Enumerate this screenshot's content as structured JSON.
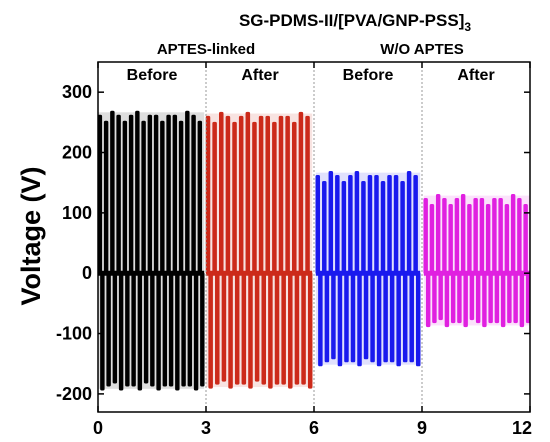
{
  "chart_data": {
    "type": "line",
    "title": "SG-PDMS-II/[PVA/GNP-PSS]",
    "title_subscript": "3",
    "xlabel": "",
    "ylabel": "Voltage (V)",
    "xlim": [
      0,
      12
    ],
    "ylim": [
      -230,
      350
    ],
    "xticks": [
      0,
      3,
      6,
      9,
      12
    ],
    "yticks": [
      -200,
      -100,
      0,
      100,
      200,
      300
    ],
    "grid": false,
    "legend": "none",
    "separators_x": [
      3,
      6,
      9
    ],
    "groups": [
      {
        "label": "APTES-linked",
        "x_range": [
          0,
          6
        ]
      },
      {
        "label": "W/O APTES",
        "x_range": [
          6,
          12
        ]
      }
    ],
    "sections": [
      {
        "label": "Before",
        "x_range": [
          0,
          3
        ]
      },
      {
        "label": "After",
        "x_range": [
          3,
          6
        ]
      },
      {
        "label": "Before",
        "x_range": [
          6,
          9
        ]
      },
      {
        "label": "After",
        "x_range": [
          9,
          12
        ]
      }
    ],
    "series": [
      {
        "color": "#000000",
        "x_range": [
          0,
          2.95
        ],
        "pulses": 17,
        "pos_peak": 260,
        "neg_peak": -185
      },
      {
        "color": "#cc2a1a",
        "x_range": [
          3.0,
          5.95
        ],
        "pulses": 16,
        "pos_peak": 258,
        "neg_peak": -182
      },
      {
        "color": "#1a1aee",
        "x_range": [
          6.05,
          8.95
        ],
        "pulses": 16,
        "pos_peak": 160,
        "neg_peak": -145
      },
      {
        "color": "#e020e0",
        "x_range": [
          9.05,
          12.0
        ],
        "pulses": 17,
        "pos_peak": 122,
        "neg_peak": -80
      }
    ]
  }
}
